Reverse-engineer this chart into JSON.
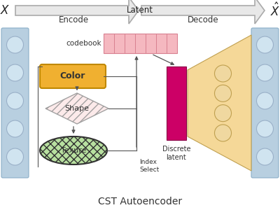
{
  "title": "CST Autoencoder",
  "bg_color": "#ffffff",
  "arrow_color": "#bbbbbb",
  "left_panel_color": "#b8cfe0",
  "right_panel_color": "#b8cfe0",
  "circle_fill": "#d0e4f0",
  "circle_edge": "#9ab0c8",
  "codebook_fill": "#f5b8c0",
  "codebook_edge": "#d88090",
  "color_box_fill": "#f0b030",
  "color_box_edge": "#c08800",
  "shape_fill": "#fce8e8",
  "shape_edge": "#999999",
  "texture_fill": "#b8e0a0",
  "texture_edge": "#333333",
  "discrete_fill": "#cc0066",
  "discrete_edge": "#880044",
  "decoder_fill": "#f5d898",
  "decoder_edge": "#c0a050",
  "decoder_circle_fill": "#f0d8a0",
  "flow_color": "#555555",
  "X_label": "$X$",
  "Xhat_label": "$\\hat{X}$",
  "encode_label": "Encode",
  "decode_label": "Decode",
  "latent_label": "Latent",
  "codebook_label": "codebook",
  "color_label": "Color",
  "shape_label": "Shape",
  "texture_label": "Texure",
  "index_label": "Index\nSelect",
  "discrete_label": "Discrete\nlatent"
}
